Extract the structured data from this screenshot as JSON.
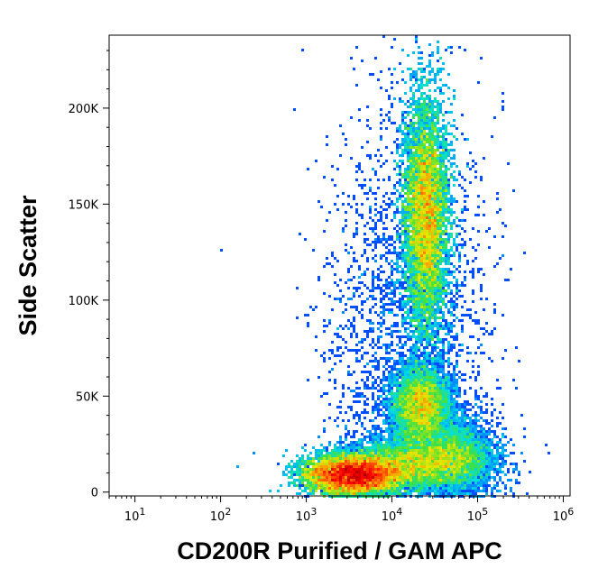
{
  "chart_data": {
    "type": "scatter",
    "subtype": "density flow cytometry plot",
    "xlabel": "CD200R Purified / GAM APC",
    "ylabel": "Side Scatter",
    "x_scale": "log",
    "xlim": [
      5,
      1200000
    ],
    "x_ticks": [
      {
        "value": 10,
        "base": "10",
        "exp": "1"
      },
      {
        "value": 100,
        "base": "10",
        "exp": "2"
      },
      {
        "value": 1000,
        "base": "10",
        "exp": "3"
      },
      {
        "value": 10000,
        "base": "10",
        "exp": "4"
      },
      {
        "value": 100000,
        "base": "10",
        "exp": "5"
      },
      {
        "value": 1000000,
        "base": "10",
        "exp": "6"
      }
    ],
    "y_scale": "linear",
    "ylim": [
      -2000,
      238000
    ],
    "y_ticks": [
      {
        "value": 0,
        "label": "0"
      },
      {
        "value": 50000,
        "label": "50K"
      },
      {
        "value": 100000,
        "label": "100K"
      },
      {
        "value": 150000,
        "label": "150K"
      },
      {
        "value": 200000,
        "label": "200K"
      }
    ],
    "grid": false,
    "legend": "none",
    "colormap": [
      "#0000ff",
      "#0090ff",
      "#00e0e0",
      "#40e040",
      "#e8e800",
      "#ff8000",
      "#ff0000",
      "#a00000"
    ],
    "populations": [
      {
        "center_x": 3500,
        "center_y": 9000,
        "spread_log_x": 0.28,
        "spread_y": 5000,
        "weight": 0.34
      },
      {
        "center_x": 20000,
        "center_y": 15000,
        "spread_log_x": 0.4,
        "spread_y": 7000,
        "weight": 0.14
      },
      {
        "center_x": 25000,
        "center_y": 145000,
        "spread_log_x": 0.13,
        "spread_y": 30000,
        "weight": 0.3
      },
      {
        "center_x": 22000,
        "center_y": 45000,
        "spread_log_x": 0.17,
        "spread_y": 10000,
        "weight": 0.12
      },
      {
        "center_x": 60000,
        "center_y": 20000,
        "spread_log_x": 0.2,
        "spread_y": 10000,
        "weight": 0.05
      },
      {
        "center_x": 15000,
        "center_y": 80000,
        "spread_log_x": 0.45,
        "spread_y": 60000,
        "weight": 0.05
      }
    ]
  }
}
